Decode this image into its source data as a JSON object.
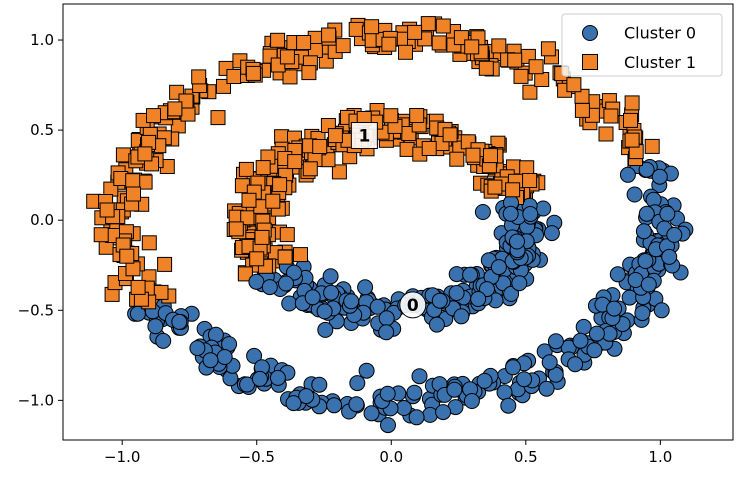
{
  "chart_data": {
    "type": "scatter",
    "title": "",
    "xlabel": "",
    "ylabel": "",
    "xlim": [
      -1.22,
      1.27
    ],
    "ylim": [
      -1.22,
      1.2
    ],
    "grid": false,
    "x_ticks": [
      -1.0,
      -0.5,
      0.0,
      0.5,
      1.0
    ],
    "x_tick_labels": [
      "−1.0",
      "−0.5",
      "0.0",
      "0.5",
      "1.0"
    ],
    "y_ticks": [
      -1.0,
      -0.5,
      0.0,
      0.5,
      1.0
    ],
    "y_tick_labels": [
      "−1.0",
      "−0.5",
      "0.0",
      "0.5",
      "1.0"
    ],
    "legend_position": "upper-right",
    "series": [
      {
        "name": "Cluster 0",
        "marker": "circle",
        "color": "#3a72b0",
        "edge_color": "#000000",
        "point_count": 500,
        "description": "lower half of the inner ring (radius ~0.5) and lower part of the outer ring (radius ~1.0), both noisy"
      },
      {
        "name": "Cluster 1",
        "marker": "square",
        "color": "#f08328",
        "edge_color": "#000000",
        "point_count": 500,
        "description": "upper half of the inner ring (radius ~0.5) and upper part of the outer ring (radius ~1.0), both noisy"
      }
    ],
    "centroids": [
      {
        "label": "0",
        "x": 0.08,
        "y": -0.47,
        "marker": "circle"
      },
      {
        "label": "1",
        "x": -0.1,
        "y": 0.47,
        "marker": "square"
      }
    ]
  }
}
